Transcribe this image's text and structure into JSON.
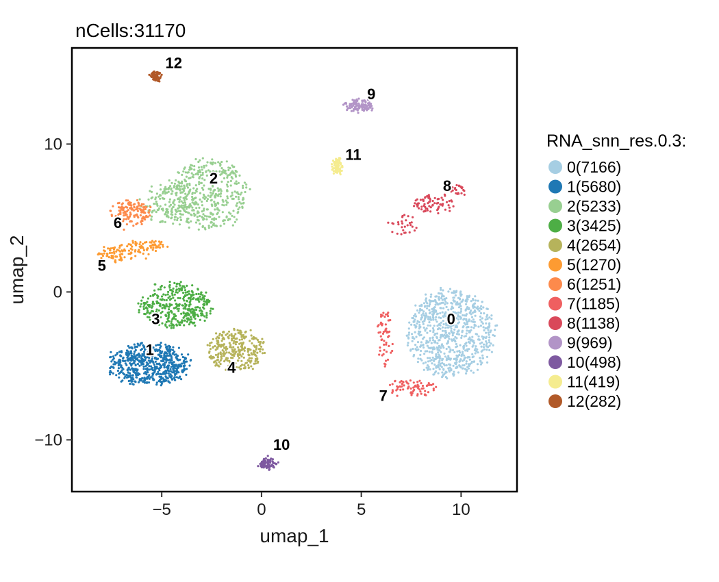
{
  "chart_data": {
    "type": "scatter",
    "title": "nCells:31170",
    "xlabel": "umap_1",
    "ylabel": "umap_2",
    "xlim": [
      -9.5,
      12.8
    ],
    "ylim": [
      -13.5,
      16.5
    ],
    "xticks": [
      {
        "value": -5,
        "label": "−5"
      },
      {
        "value": 0,
        "label": "0"
      },
      {
        "value": 5,
        "label": "5"
      },
      {
        "value": 10,
        "label": "10"
      }
    ],
    "yticks": [
      {
        "value": -10,
        "label": "−10"
      },
      {
        "value": 0,
        "label": "0"
      },
      {
        "value": 10,
        "label": "10"
      }
    ],
    "grid": false,
    "legend": {
      "title": "RNA_snn_res.0.3:",
      "placement": "right"
    },
    "series": [
      {
        "name": "0(7166)",
        "cluster": "0",
        "count": 7166,
        "color": "#a6cee3",
        "center": [
          9.5,
          -2.8
        ],
        "label_pos": [
          9.5,
          -1.8
        ]
      },
      {
        "name": "1(5680)",
        "cluster": "1",
        "count": 5680,
        "color": "#1f78b4",
        "center": [
          -5.7,
          -5.0
        ],
        "label_pos": [
          -5.6,
          -3.9
        ]
      },
      {
        "name": "2(5233)",
        "cluster": "2",
        "count": 5233,
        "color": "#98cf91",
        "center": [
          -2.8,
          6.5
        ],
        "label_pos": [
          -2.4,
          7.7
        ]
      },
      {
        "name": "3(3425)",
        "cluster": "3",
        "count": 3425,
        "color": "#4dae45",
        "center": [
          -4.5,
          -0.8
        ],
        "label_pos": [
          -5.3,
          -1.8
        ]
      },
      {
        "name": "4(2654)",
        "cluster": "4",
        "count": 2654,
        "color": "#b6b35b",
        "center": [
          -1.5,
          -3.8
        ],
        "label_pos": [
          -1.5,
          -5.1
        ]
      },
      {
        "name": "5(1270)",
        "cluster": "5",
        "count": 1270,
        "color": "#fd9b32",
        "center": [
          -7.3,
          2.6
        ],
        "label_pos": [
          -8.0,
          1.8
        ]
      },
      {
        "name": "6(1251)",
        "cluster": "6",
        "count": 1251,
        "color": "#fd8a4c",
        "center": [
          -6.6,
          5.2
        ],
        "label_pos": [
          -7.2,
          4.7
        ]
      },
      {
        "name": "7(1185)",
        "cluster": "7",
        "count": 1185,
        "color": "#ef5f60",
        "center": [
          6.8,
          -4.5
        ],
        "label_pos": [
          6.1,
          -7.0
        ]
      },
      {
        "name": "8(1138)",
        "cluster": "8",
        "count": 1138,
        "color": "#d9485a",
        "center": [
          8.3,
          5.9
        ],
        "label_pos": [
          9.3,
          7.2
        ]
      },
      {
        "name": "9(969)",
        "cluster": "9",
        "count": 969,
        "color": "#b294c7",
        "center": [
          4.9,
          12.7
        ],
        "label_pos": [
          5.5,
          13.4
        ]
      },
      {
        "name": "10(498)",
        "cluster": "10",
        "count": 498,
        "color": "#7e59a0",
        "center": [
          0.3,
          -11.5
        ],
        "label_pos": [
          1.0,
          -10.3
        ]
      },
      {
        "name": "11(419)",
        "cluster": "11",
        "count": 419,
        "color": "#f5ec8f",
        "center": [
          3.8,
          8.3
        ],
        "label_pos": [
          4.6,
          9.3
        ]
      },
      {
        "name": "12(282)",
        "cluster": "12",
        "count": 282,
        "color": "#b15928",
        "center": [
          -5.2,
          14.5
        ],
        "label_pos": [
          -4.4,
          15.5
        ]
      }
    ]
  }
}
